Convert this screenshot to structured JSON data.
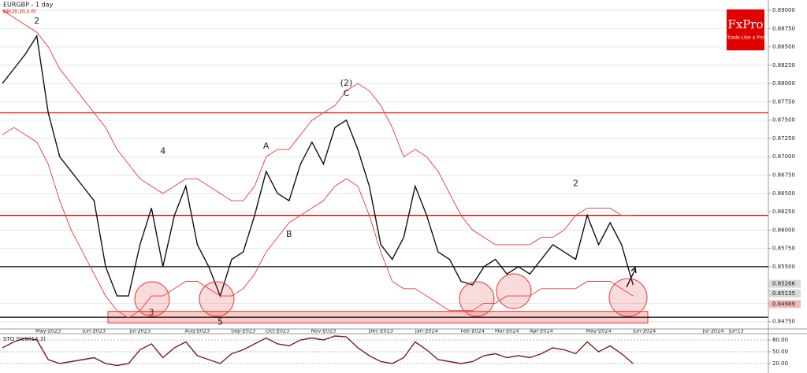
{
  "chart_data": [
    {
      "type": "line",
      "title": "EURGBP - 1 day",
      "subtitle": "BB(20,20,2.0)",
      "brand": "FxPro",
      "tagline": "Trade Like a Pro",
      "categories": [
        null,
        null,
        null,
        null,
        "May-2023",
        null,
        null,
        null,
        "Jun-2023",
        null,
        null,
        null,
        "Jul-2023",
        null,
        null,
        null,
        null,
        "Aug-2023",
        null,
        null,
        null,
        "Sep-2023",
        null,
        null,
        "Oct-2023",
        null,
        null,
        null,
        "Nov-2023",
        null,
        null,
        null,
        null,
        "Dec-2023",
        null,
        null,
        null,
        "Jan-2024",
        null,
        null,
        null,
        "Feb-2024",
        null,
        null,
        "Mar-2024",
        null,
        null,
        "Apr-2024",
        null,
        null,
        null,
        null,
        "May-2024",
        null,
        null,
        null,
        "Jun-2024",
        null,
        null,
        null,
        null,
        null,
        "Jul-2024",
        null,
        "Jul-13",
        null,
        null
      ],
      "series": [
        {
          "name": "Close",
          "color": "#111111",
          "values": [
            0.88,
            0.882,
            0.884,
            0.8865,
            0.876,
            0.87,
            0.868,
            0.866,
            0.864,
            0.855,
            0.851,
            0.851,
            0.858,
            0.863,
            0.855,
            0.862,
            0.866,
            0.858,
            0.855,
            0.851,
            0.856,
            0.857,
            0.862,
            0.868,
            0.865,
            0.864,
            0.869,
            0.872,
            0.869,
            0.874,
            0.875,
            0.871,
            0.866,
            0.858,
            0.856,
            0.859,
            0.866,
            0.862,
            0.857,
            0.856,
            0.853,
            0.8525,
            0.855,
            0.856,
            0.854,
            0.855,
            0.854,
            0.856,
            0.858,
            0.857,
            0.856,
            0.862,
            0.858,
            0.861,
            0.858,
            0.8525,
            null,
            null,
            null,
            null,
            null,
            null,
            null,
            null,
            null,
            null,
            null
          ]
        },
        {
          "name": "BB upper",
          "color": "#e53935",
          "values": [
            0.89,
            0.889,
            0.888,
            0.887,
            0.885,
            0.882,
            0.88,
            0.878,
            0.876,
            0.874,
            0.871,
            0.869,
            0.867,
            0.866,
            0.865,
            0.866,
            0.867,
            0.867,
            0.866,
            0.865,
            0.864,
            0.864,
            0.866,
            0.87,
            0.871,
            0.871,
            0.873,
            0.875,
            0.876,
            0.877,
            0.879,
            0.88,
            0.879,
            0.877,
            0.874,
            0.87,
            0.871,
            0.87,
            0.868,
            0.865,
            0.862,
            0.86,
            0.859,
            0.858,
            0.858,
            0.858,
            0.858,
            0.859,
            0.859,
            0.86,
            0.862,
            0.863,
            0.863,
            0.863,
            0.862,
            0.862,
            null,
            null,
            null,
            null,
            null,
            null,
            null,
            null,
            null,
            null,
            null
          ]
        },
        {
          "name": "BB lower",
          "color": "#e53935",
          "values": [
            0.873,
            0.874,
            0.873,
            0.872,
            0.869,
            0.864,
            0.86,
            0.857,
            0.854,
            0.851,
            0.849,
            0.848,
            0.849,
            0.851,
            0.851,
            0.852,
            0.853,
            0.853,
            0.852,
            0.851,
            0.851,
            0.852,
            0.854,
            0.857,
            0.859,
            0.861,
            0.862,
            0.863,
            0.864,
            0.866,
            0.867,
            0.866,
            0.862,
            0.857,
            0.853,
            0.852,
            0.852,
            0.851,
            0.85,
            0.849,
            0.849,
            0.849,
            0.85,
            0.85,
            0.851,
            0.851,
            0.851,
            0.852,
            0.852,
            0.852,
            0.852,
            0.853,
            0.853,
            0.853,
            0.852,
            0.851,
            null,
            null,
            null,
            null,
            null,
            null,
            null,
            null,
            null,
            null,
            null
          ]
        }
      ],
      "ylim": [
        0.8465,
        0.8914
      ],
      "yticks": [
        {
          "value": 0.8475,
          "label": "0.84750"
        },
        {
          "value": 0.85,
          "label": "0.85000"
        },
        {
          "value": 0.855,
          "label": "0.85500"
        },
        {
          "value": 0.8575,
          "label": "0.85750"
        },
        {
          "value": 0.86,
          "label": "0.86000"
        },
        {
          "value": 0.8625,
          "label": "0.86250"
        },
        {
          "value": 0.865,
          "label": "0.86500"
        },
        {
          "value": 0.8675,
          "label": "0.86750"
        },
        {
          "value": 0.87,
          "label": "0.87000"
        },
        {
          "value": 0.8725,
          "label": "0.87250"
        },
        {
          "value": 0.875,
          "label": "0.87500"
        },
        {
          "value": 0.8775,
          "label": "0.87750"
        },
        {
          "value": 0.88,
          "label": "0.88000"
        },
        {
          "value": 0.8825,
          "label": "0.88250"
        },
        {
          "value": 0.885,
          "label": "0.88500"
        },
        {
          "value": 0.8875,
          "label": "0.88750"
        },
        {
          "value": 0.89,
          "label": "0.89000"
        }
      ],
      "grid": true,
      "levels": [
        {
          "value": 0.876,
          "color": "#e00000"
        },
        {
          "value": 0.862,
          "color": "#e00000"
        },
        {
          "value": 0.855,
          "color": "#000000"
        },
        {
          "value": 0.8481,
          "color": "#000000"
        }
      ],
      "zone": [
        0.8473,
        0.8489
      ],
      "price_markers": [
        {
          "value": 0.85266,
          "label": "0.85266",
          "color": "#d9d9d9"
        },
        {
          "value": 0.85135,
          "label": "0.85135",
          "color": "#d9d9d9"
        },
        {
          "value": 0.84989,
          "label": "0.84989",
          "color": "#f4b6b6"
        }
      ],
      "annotations": [
        {
          "text": "2",
          "at": 3,
          "price": 0.8885
        },
        {
          "text": "3",
          "at": 13,
          "price": 0.8487
        },
        {
          "text": "4",
          "at": 14,
          "price": 0.8707
        },
        {
          "text": "5",
          "at": 19,
          "price": 0.8474
        },
        {
          "text": "A",
          "at": 23,
          "price": 0.8714
        },
        {
          "text": "B",
          "at": 25,
          "price": 0.8594
        },
        {
          "text": "(2)",
          "at": 30,
          "price": 0.88
        },
        {
          "text": "C",
          "at": 30,
          "price": 0.8786
        },
        {
          "text": "2",
          "at": 50,
          "price": 0.8663
        }
      ]
    },
    {
      "type": "line",
      "title": "STO Slow(14,3)",
      "series": [
        {
          "name": "%K",
          "color": "#7a1f1f",
          "values": [
            60,
            75,
            85,
            80,
            30,
            20,
            25,
            30,
            35,
            20,
            15,
            20,
            55,
            70,
            35,
            60,
            75,
            40,
            30,
            20,
            45,
            55,
            70,
            85,
            70,
            65,
            80,
            85,
            80,
            90,
            88,
            60,
            40,
            25,
            20,
            35,
            75,
            55,
            30,
            25,
            20,
            25,
            40,
            45,
            35,
            40,
            35,
            45,
            60,
            55,
            45,
            75,
            50,
            65,
            45,
            20
          ]
        }
      ],
      "ylim": [
        4,
        94
      ],
      "yticks": [
        {
          "value": 20,
          "label": "20.00"
        },
        {
          "value": 50,
          "label": "50.00"
        },
        {
          "value": 80,
          "label": "80.00"
        }
      ]
    }
  ]
}
